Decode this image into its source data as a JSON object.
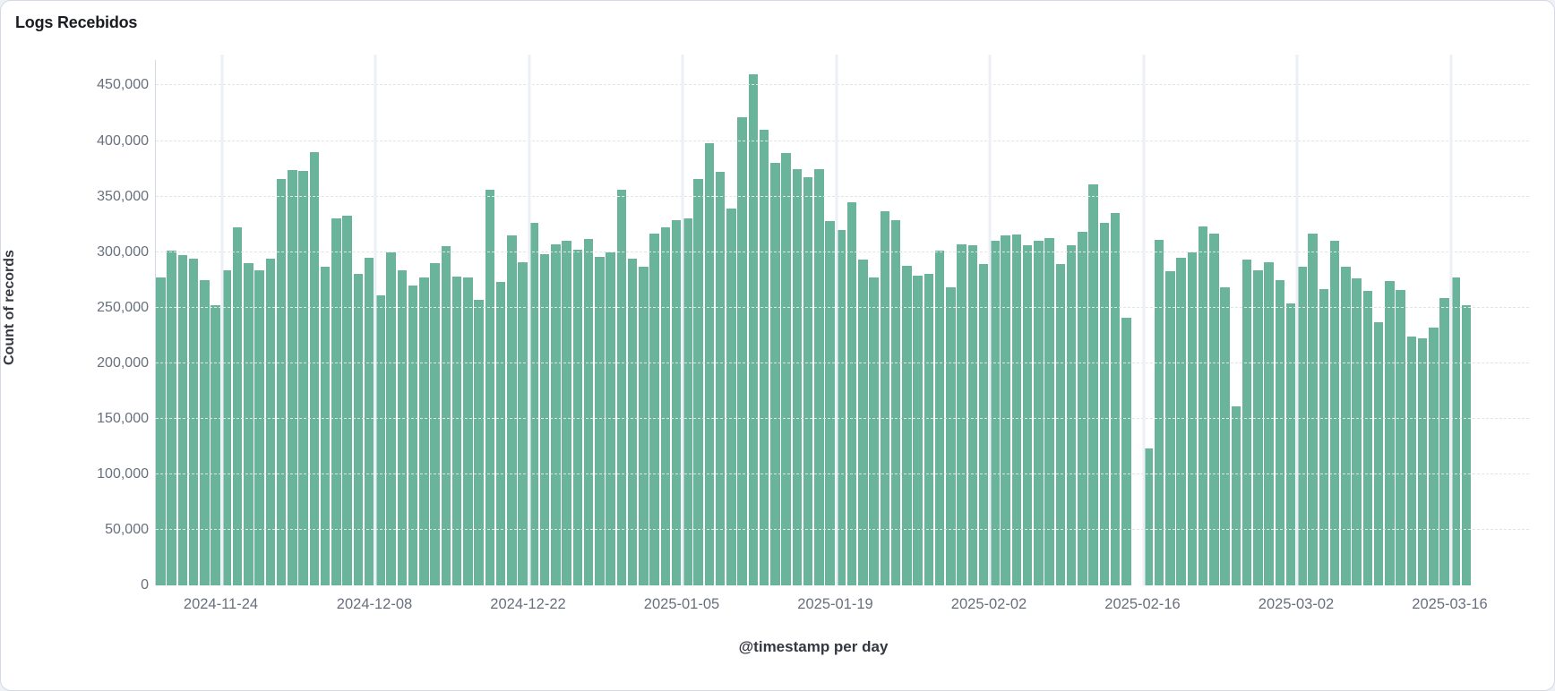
{
  "card": {
    "title": "Logs Recebidos"
  },
  "colors": {
    "bar": "#6ab49c",
    "card_border": "#d3dae6",
    "grid_dashed": "#dfe4ee",
    "week_gridline": "#eceff5",
    "tick_text": "#69707d",
    "axis_title_text": "#343741",
    "title_text": "#1a1c21",
    "background": "#ffffff"
  },
  "chart_data": {
    "type": "bar",
    "title": "Logs Recebidos",
    "xlabel": "@timestamp per day",
    "ylabel": "Count of records",
    "ylim": [
      0,
      450000
    ],
    "grid": "horizontal dashed lines every 50,000; vertical light bands at weekly ticks",
    "legend": "none",
    "y_ticks": [
      {
        "value": 0,
        "label": "0"
      },
      {
        "value": 50000,
        "label": "50,000"
      },
      {
        "value": 100000,
        "label": "100,000"
      },
      {
        "value": 150000,
        "label": "150,000"
      },
      {
        "value": 200000,
        "label": "200,000"
      },
      {
        "value": 250000,
        "label": "250,000"
      },
      {
        "value": 300000,
        "label": "300,000"
      },
      {
        "value": 350000,
        "label": "350,000"
      },
      {
        "value": 400000,
        "label": "400,000"
      },
      {
        "value": 450000,
        "label": "450,000"
      }
    ],
    "x_ticks": [
      "2024-11-24",
      "2024-12-08",
      "2024-12-22",
      "2025-01-05",
      "2025-01-19",
      "2025-02-02",
      "2025-02-16",
      "2025-03-02",
      "2025-03-16"
    ],
    "dates": [
      "2024-11-18",
      "2024-11-19",
      "2024-11-20",
      "2024-11-21",
      "2024-11-22",
      "2024-11-23",
      "2024-11-24",
      "2024-11-25",
      "2024-11-26",
      "2024-11-27",
      "2024-11-28",
      "2024-11-29",
      "2024-11-30",
      "2024-12-01",
      "2024-12-02",
      "2024-12-03",
      "2024-12-04",
      "2024-12-05",
      "2024-12-06",
      "2024-12-07",
      "2024-12-08",
      "2024-12-09",
      "2024-12-10",
      "2024-12-11",
      "2024-12-12",
      "2024-12-13",
      "2024-12-14",
      "2024-12-15",
      "2024-12-16",
      "2024-12-17",
      "2024-12-18",
      "2024-12-19",
      "2024-12-20",
      "2024-12-21",
      "2024-12-22",
      "2024-12-23",
      "2024-12-24",
      "2024-12-25",
      "2024-12-26",
      "2024-12-27",
      "2024-12-28",
      "2024-12-29",
      "2024-12-30",
      "2024-12-31",
      "2025-01-01",
      "2025-01-02",
      "2025-01-03",
      "2025-01-04",
      "2025-01-05",
      "2025-01-06",
      "2025-01-07",
      "2025-01-08",
      "2025-01-09",
      "2025-01-10",
      "2025-01-11",
      "2025-01-12",
      "2025-01-13",
      "2025-01-14",
      "2025-01-15",
      "2025-01-16",
      "2025-01-17",
      "2025-01-18",
      "2025-01-19",
      "2025-01-20",
      "2025-01-21",
      "2025-01-22",
      "2025-01-23",
      "2025-01-24",
      "2025-01-25",
      "2025-01-26",
      "2025-01-27",
      "2025-01-28",
      "2025-01-29",
      "2025-01-30",
      "2025-01-31",
      "2025-02-01",
      "2025-02-02",
      "2025-02-03",
      "2025-02-04",
      "2025-02-05",
      "2025-02-06",
      "2025-02-07",
      "2025-02-08",
      "2025-02-09",
      "2025-02-10",
      "2025-02-11",
      "2025-02-12",
      "2025-02-13",
      "2025-02-14",
      "2025-02-15",
      "2025-02-16",
      "2025-02-17",
      "2025-02-18",
      "2025-02-19",
      "2025-02-20",
      "2025-02-21",
      "2025-02-22",
      "2025-02-23",
      "2025-02-24",
      "2025-02-25",
      "2025-02-26",
      "2025-02-27",
      "2025-02-28",
      "2025-03-01",
      "2025-03-02",
      "2025-03-03",
      "2025-03-04",
      "2025-03-05",
      "2025-03-06",
      "2025-03-07",
      "2025-03-08",
      "2025-03-09",
      "2025-03-10",
      "2025-03-11",
      "2025-03-12",
      "2025-03-13",
      "2025-03-14",
      "2025-03-15",
      "2025-03-16",
      "2025-03-17"
    ],
    "values": [
      277000,
      301000,
      297000,
      294000,
      275000,
      252000,
      284000,
      322000,
      290000,
      284000,
      294000,
      366000,
      374000,
      373000,
      390000,
      287000,
      330000,
      333000,
      280000,
      295000,
      261000,
      300000,
      284000,
      270000,
      277000,
      290000,
      305000,
      278000,
      277000,
      257000,
      356000,
      273000,
      315000,
      291000,
      326000,
      298000,
      307000,
      310000,
      302000,
      312000,
      296000,
      300000,
      356000,
      294000,
      287000,
      317000,
      322000,
      329000,
      330000,
      366000,
      398000,
      372000,
      339000,
      421000,
      460000,
      410000,
      380000,
      389000,
      375000,
      367000,
      375000,
      328000,
      320000,
      345000,
      293000,
      277000,
      337000,
      329000,
      288000,
      279000,
      280000,
      301000,
      268000,
      307000,
      306000,
      289000,
      310000,
      315000,
      316000,
      306000,
      310000,
      313000,
      289000,
      306000,
      318000,
      361000,
      326000,
      335000,
      241000,
      0,
      123000,
      311000,
      283000,
      295000,
      300000,
      323000,
      317000,
      268000,
      161000,
      293000,
      284000,
      291000,
      275000,
      254000,
      287000,
      317000,
      267000,
      310000,
      287000,
      276000,
      265000,
      237000,
      274000,
      266000,
      224000,
      222000,
      232000,
      259000,
      277000,
      252000
    ]
  }
}
